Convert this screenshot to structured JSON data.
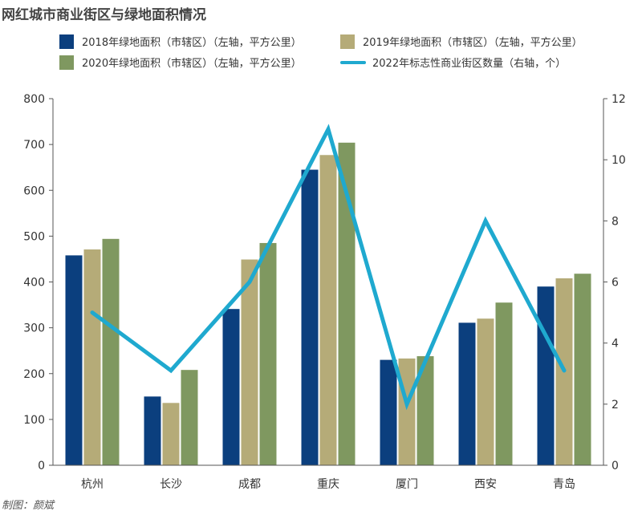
{
  "title": "网红城市商业街区与绿地面积情况",
  "credit": "制图：颜斌",
  "chart_data": {
    "type": "bar",
    "categories": [
      "杭州",
      "长沙",
      "成都",
      "重庆",
      "厦门",
      "西安",
      "青岛"
    ],
    "series": [
      {
        "name": "2018年绿地面积（市辖区）（左轴，平方公里）",
        "axis": "left",
        "kind": "bar",
        "color": "#0b3f7e",
        "values": [
          458,
          150,
          341,
          645,
          230,
          311,
          390
        ]
      },
      {
        "name": "2019年绿地面积（市辖区）（左轴，平方公里）",
        "axis": "left",
        "kind": "bar",
        "color": "#b5ab78",
        "values": [
          471,
          136,
          449,
          677,
          233,
          320,
          408
        ]
      },
      {
        "name": "2020年绿地面积（市辖区）（左轴，平方公里）",
        "axis": "left",
        "kind": "bar",
        "color": "#7f9860",
        "values": [
          494,
          208,
          485,
          704,
          238,
          355,
          418
        ]
      },
      {
        "name": "2022年标志性商业街区数量（右轴，个）",
        "axis": "right",
        "kind": "line",
        "color": "#1fa9cf",
        "values": [
          5,
          3.1,
          6,
          11,
          2,
          8,
          3.1
        ]
      }
    ],
    "y_left": {
      "min": 0,
      "max": 800,
      "step": 100,
      "ticks": [
        "0",
        "100",
        "200",
        "300",
        "400",
        "500",
        "600",
        "700",
        "800"
      ]
    },
    "y_right": {
      "min": 0,
      "max": 12,
      "step": 2,
      "ticks": [
        "0",
        "2",
        "4",
        "6",
        "8",
        "10",
        "12"
      ]
    },
    "grid": false,
    "legend_position": "top"
  }
}
